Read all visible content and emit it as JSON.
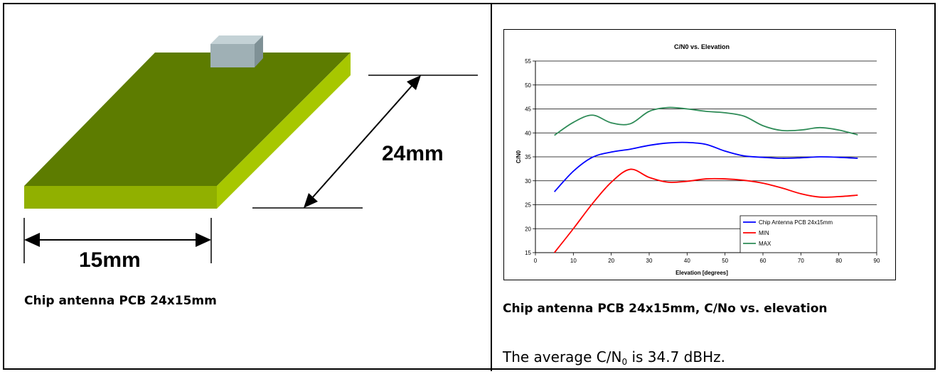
{
  "left_panel": {
    "width_label": "15mm",
    "length_label": "24mm",
    "caption": "Chip antenna PCB 24x15mm",
    "colors": {
      "board_top": "#5d7c00",
      "board_front": "#91b000",
      "board_side": "#a7c700",
      "chip_front": "#9fb0b5",
      "chip_top": "#c4d2d6",
      "chip_side": "#7f9196"
    }
  },
  "right_panel": {
    "caption": "Chip antenna PCB 24x15mm, C/No vs. elevation",
    "note": {
      "prefix": "The average C/N",
      "subscript": "0",
      "suffix": " is 34.7 dBHz."
    }
  },
  "chart_data": {
    "type": "line",
    "title": "C/N0 vs. Elevation",
    "xlabel": "Elevation [degrees]",
    "ylabel": "C/N0",
    "xlim": [
      0,
      90
    ],
    "ylim": [
      15,
      55
    ],
    "xticks": [
      0,
      10,
      20,
      30,
      40,
      50,
      60,
      70,
      80,
      90
    ],
    "yticks": [
      15,
      20,
      25,
      30,
      35,
      40,
      45,
      50,
      55
    ],
    "grid": "horizontal",
    "legend_position": "bottom-right",
    "series": [
      {
        "name": "Chip Antenna PCB  24x15mm",
        "color": "#0000ff",
        "x": [
          5,
          10,
          15,
          20,
          25,
          30,
          35,
          40,
          45,
          50,
          55,
          60,
          65,
          70,
          75,
          80,
          85
        ],
        "y": [
          27.7,
          32.0,
          34.9,
          36.0,
          36.6,
          37.4,
          37.9,
          38.0,
          37.6,
          36.2,
          35.2,
          34.9,
          34.7,
          34.8,
          35.0,
          34.9,
          34.7
        ]
      },
      {
        "name": "MIN",
        "color": "#ff0000",
        "x": [
          5,
          10,
          15,
          20,
          25,
          30,
          35,
          40,
          45,
          50,
          55,
          60,
          65,
          70,
          75,
          80,
          85
        ],
        "y": [
          15.0,
          20.0,
          25.2,
          29.7,
          32.4,
          30.7,
          29.7,
          29.9,
          30.4,
          30.4,
          30.1,
          29.5,
          28.5,
          27.3,
          26.6,
          26.7,
          27.0
        ]
      },
      {
        "name": "MAX",
        "color": "#2e8b57",
        "x": [
          5,
          10,
          15,
          20,
          25,
          30,
          35,
          40,
          45,
          50,
          55,
          60,
          65,
          70,
          75,
          80,
          85
        ],
        "y": [
          39.5,
          42.2,
          43.7,
          42.1,
          41.9,
          44.5,
          45.3,
          45.0,
          44.5,
          44.2,
          43.5,
          41.5,
          40.5,
          40.6,
          41.1,
          40.6,
          39.6
        ]
      }
    ]
  }
}
